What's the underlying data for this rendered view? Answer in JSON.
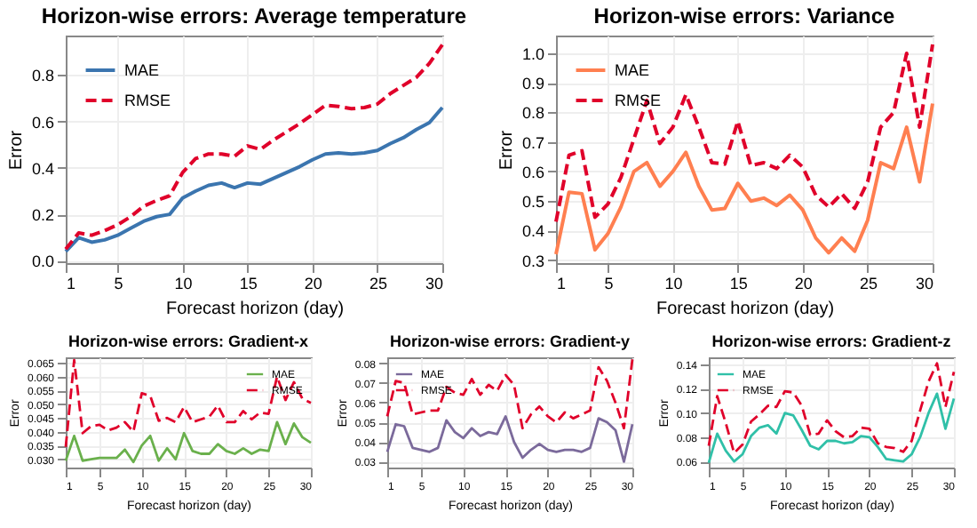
{
  "chart_data": [
    {
      "type": "line",
      "title": "Horizon-wise errors: Average temperature",
      "xlabel": "Forecast horizon (day)",
      "ylabel": "Error",
      "x": [
        1,
        2,
        3,
        4,
        5,
        6,
        7,
        8,
        9,
        10,
        11,
        12,
        13,
        14,
        15,
        16,
        17,
        18,
        19,
        20,
        21,
        22,
        23,
        24,
        25,
        26,
        27,
        28,
        29,
        30
      ],
      "xlim": [
        1,
        30
      ],
      "xticks": [
        1,
        5,
        10,
        15,
        20,
        25,
        30
      ],
      "ylim": [
        -0.01,
        0.97
      ],
      "yticks": [
        {
          "value": 0,
          "label": "0.0"
        },
        0.2,
        0.4,
        0.6,
        0.8
      ],
      "grid": true,
      "legend": "top left",
      "series": [
        {
          "name": "MAE",
          "color": "#3b75af",
          "line_style": "solid",
          "values": [
            0.04,
            0.1,
            0.08,
            0.09,
            0.11,
            0.14,
            0.17,
            0.19,
            0.2,
            0.27,
            0.3,
            0.325,
            0.335,
            0.315,
            0.335,
            0.33,
            0.355,
            0.38,
            0.405,
            0.435,
            0.46,
            0.465,
            0.46,
            0.465,
            0.475,
            0.505,
            0.53,
            0.565,
            0.595,
            0.66
          ]
        },
        {
          "name": "RMSE",
          "color": "#e0002a",
          "line_style": "dashed",
          "values": [
            0.05,
            0.12,
            0.11,
            0.13,
            0.155,
            0.19,
            0.235,
            0.26,
            0.28,
            0.38,
            0.44,
            0.46,
            0.46,
            0.45,
            0.495,
            0.48,
            0.52,
            0.555,
            0.59,
            0.63,
            0.67,
            0.665,
            0.655,
            0.66,
            0.675,
            0.72,
            0.755,
            0.79,
            0.85,
            0.93
          ]
        }
      ]
    },
    {
      "type": "line",
      "title": "Horizon-wise errors: Variance",
      "xlabel": "Forecast horizon (day)",
      "ylabel": "Error",
      "x": [
        1,
        2,
        3,
        4,
        5,
        6,
        7,
        8,
        9,
        10,
        11,
        12,
        13,
        14,
        15,
        16,
        17,
        18,
        19,
        20,
        21,
        22,
        23,
        24,
        25,
        26,
        27,
        28,
        29,
        30
      ],
      "xlim": [
        1,
        30
      ],
      "xticks": [
        1,
        5,
        10,
        15,
        20,
        25,
        30
      ],
      "ylim": [
        0.29,
        1.06
      ],
      "yticks": [
        0.3,
        0.4,
        0.5,
        0.6,
        0.7,
        0.8,
        0.9,
        {
          "value": 1,
          "label": "1.0"
        }
      ],
      "grid": true,
      "legend": "top left",
      "series": [
        {
          "name": "MAE",
          "color": "#ff7f50",
          "line_style": "solid",
          "values": [
            0.32,
            0.53,
            0.525,
            0.335,
            0.39,
            0.48,
            0.6,
            0.63,
            0.55,
            0.6,
            0.665,
            0.55,
            0.47,
            0.475,
            0.56,
            0.5,
            0.51,
            0.485,
            0.52,
            0.47,
            0.375,
            0.325,
            0.375,
            0.33,
            0.435,
            0.63,
            0.61,
            0.75,
            0.565,
            0.83
          ]
        },
        {
          "name": "RMSE",
          "color": "#e0002a",
          "line_style": "dashed",
          "values": [
            0.43,
            0.655,
            0.67,
            0.445,
            0.49,
            0.58,
            0.71,
            0.84,
            0.695,
            0.75,
            0.86,
            0.75,
            0.63,
            0.625,
            0.77,
            0.62,
            0.63,
            0.61,
            0.655,
            0.615,
            0.52,
            0.48,
            0.525,
            0.475,
            0.565,
            0.75,
            0.8,
            1.0,
            0.75,
            1.03
          ]
        }
      ]
    },
    {
      "type": "line",
      "title": "Horizon-wise errors: Gradient-x",
      "xlabel": "Forecast horizon (day)",
      "ylabel": "Error",
      "x": [
        1,
        2,
        3,
        4,
        5,
        6,
        7,
        8,
        9,
        10,
        11,
        12,
        13,
        14,
        15,
        16,
        17,
        18,
        19,
        20,
        21,
        22,
        23,
        24,
        25,
        26,
        27,
        28,
        29,
        30
      ],
      "xlim": [
        1,
        30
      ],
      "xticks": [
        1,
        5,
        10,
        15,
        20,
        25,
        30
      ],
      "ylim": [
        0.027,
        0.067
      ],
      "yticks": [
        {
          "value": 0.03,
          "label": "0.030"
        },
        {
          "value": 0.035,
          "label": "0.035"
        },
        {
          "value": 0.04,
          "label": "0.040"
        },
        {
          "value": 0.045,
          "label": "0.045"
        },
        {
          "value": 0.05,
          "label": "0.050"
        },
        {
          "value": 0.055,
          "label": "0.055"
        },
        {
          "value": 0.06,
          "label": "0.060"
        },
        {
          "value": 0.065,
          "label": "0.065"
        }
      ],
      "grid": true,
      "legend": "top right",
      "series": [
        {
          "name": "MAE",
          "color": "#6ab04c",
          "line_style": "solid",
          "values": [
            0.0295,
            0.0385,
            0.0295,
            0.03,
            0.0305,
            0.0305,
            0.0305,
            0.0335,
            0.029,
            0.035,
            0.0385,
            0.0295,
            0.034,
            0.03,
            0.0395,
            0.033,
            0.032,
            0.032,
            0.0355,
            0.033,
            0.032,
            0.034,
            0.032,
            0.0335,
            0.033,
            0.0435,
            0.0355,
            0.043,
            0.038,
            0.036
          ]
        },
        {
          "name": "RMSE",
          "color": "#e0002a",
          "line_style": "dashed",
          "values": [
            0.0345,
            0.066,
            0.0395,
            0.042,
            0.0425,
            0.0405,
            0.0415,
            0.0435,
            0.04,
            0.054,
            0.053,
            0.044,
            0.045,
            0.0435,
            0.049,
            0.0435,
            0.0445,
            0.0455,
            0.0495,
            0.0435,
            0.0435,
            0.0475,
            0.0445,
            0.047,
            0.0465,
            0.06,
            0.0515,
            0.058,
            0.052,
            0.0505
          ]
        }
      ]
    },
    {
      "type": "line",
      "title": "Horizon-wise errors: Gradient-y",
      "xlabel": "Forecast horizon (day)",
      "ylabel": "Error",
      "x": [
        1,
        2,
        3,
        4,
        5,
        6,
        7,
        8,
        9,
        10,
        11,
        12,
        13,
        14,
        15,
        16,
        17,
        18,
        19,
        20,
        21,
        22,
        23,
        24,
        25,
        26,
        27,
        28,
        29,
        30
      ],
      "xlim": [
        1,
        30
      ],
      "xticks": [
        1,
        5,
        10,
        15,
        20,
        25,
        30
      ],
      "ylim": [
        0.027,
        0.083
      ],
      "yticks": [
        0.03,
        0.04,
        0.05,
        0.06,
        0.07,
        0.08
      ],
      "grid": true,
      "legend": "top left",
      "series": [
        {
          "name": "MAE",
          "color": "#7b6a9b",
          "line_style": "solid",
          "values": [
            0.035,
            0.049,
            0.048,
            0.037,
            0.036,
            0.035,
            0.037,
            0.051,
            0.045,
            0.042,
            0.047,
            0.043,
            0.045,
            0.044,
            0.053,
            0.04,
            0.032,
            0.036,
            0.039,
            0.036,
            0.035,
            0.036,
            0.036,
            0.035,
            0.037,
            0.052,
            0.05,
            0.046,
            0.03,
            0.049
          ]
        },
        {
          "name": "RMSE",
          "color": "#e0002a",
          "line_style": "dashed",
          "values": [
            0.053,
            0.071,
            0.07,
            0.054,
            0.055,
            0.056,
            0.056,
            0.068,
            0.065,
            0.064,
            0.072,
            0.064,
            0.069,
            0.066,
            0.074,
            0.069,
            0.047,
            0.054,
            0.058,
            0.053,
            0.05,
            0.055,
            0.052,
            0.054,
            0.056,
            0.078,
            0.071,
            0.06,
            0.047,
            0.082
          ]
        }
      ]
    },
    {
      "type": "line",
      "title": "Horizon-wise errors: Gradient-z",
      "xlabel": "Forecast horizon (day)",
      "ylabel": "Error",
      "x": [
        1,
        2,
        3,
        4,
        5,
        6,
        7,
        8,
        9,
        10,
        11,
        12,
        13,
        14,
        15,
        16,
        17,
        18,
        19,
        20,
        21,
        22,
        23,
        24,
        25,
        26,
        27,
        28,
        29,
        30
      ],
      "xlim": [
        1,
        30
      ],
      "xticks": [
        1,
        5,
        10,
        15,
        20,
        25,
        30
      ],
      "ylim": [
        0.055,
        0.146
      ],
      "yticks": [
        0.06,
        0.08,
        {
          "value": 0.1,
          "label": "0.10"
        },
        0.12,
        0.14
      ],
      "grid": true,
      "legend": "top left",
      "series": [
        {
          "name": "MAE",
          "color": "#30c0a8",
          "line_style": "solid",
          "values": [
            0.059,
            0.083,
            0.069,
            0.06,
            0.066,
            0.081,
            0.088,
            0.09,
            0.083,
            0.1,
            0.098,
            0.086,
            0.073,
            0.07,
            0.077,
            0.077,
            0.075,
            0.076,
            0.081,
            0.08,
            0.072,
            0.062,
            0.061,
            0.06,
            0.066,
            0.08,
            0.1,
            0.116,
            0.087,
            0.112
          ]
        },
        {
          "name": "RMSE",
          "color": "#e0002a",
          "line_style": "dashed",
          "values": [
            0.073,
            0.114,
            0.092,
            0.067,
            0.074,
            0.093,
            0.099,
            0.106,
            0.105,
            0.118,
            0.117,
            0.106,
            0.082,
            0.083,
            0.094,
            0.085,
            0.08,
            0.081,
            0.088,
            0.087,
            0.075,
            0.072,
            0.071,
            0.068,
            0.077,
            0.102,
            0.126,
            0.141,
            0.105,
            0.134
          ]
        }
      ]
    }
  ]
}
